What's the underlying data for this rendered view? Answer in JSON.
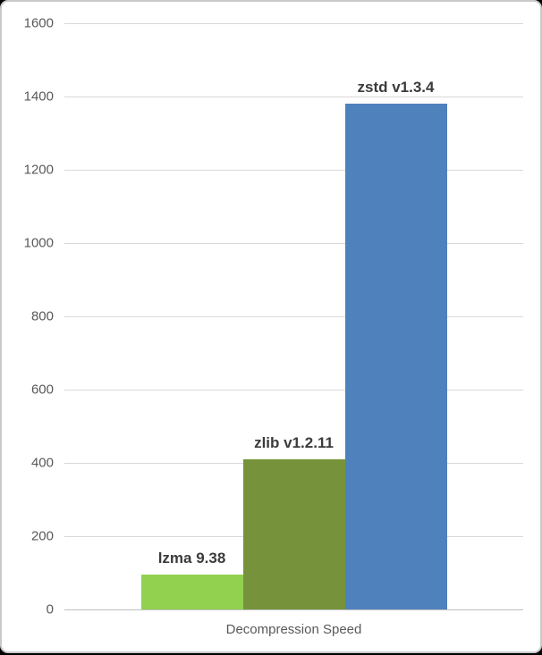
{
  "frame": {
    "background_color": "#000000",
    "panel_color": "#ffffff",
    "panel_border_color": "#c9c9c9"
  },
  "chart_data": {
    "type": "bar",
    "title": "",
    "xlabel": "Decompression Speed",
    "ylabel": "",
    "ylim": [
      0,
      1600
    ],
    "ytick_step": 200,
    "grid": true,
    "legend": "none",
    "data_labels": "series name above each bar",
    "categories": [
      "Decompression Speed"
    ],
    "series": [
      {
        "name": "lzma 9.38",
        "value": 95,
        "color": "#92D050"
      },
      {
        "name": "zlib v1.2.11",
        "value": 410,
        "color": "#76933C"
      },
      {
        "name": "zstd v1.3.4",
        "value": 1380,
        "color": "#4F81BD"
      }
    ],
    "gridline_color": "#d9d9d9",
    "axis_line_color": "#bfbfbf",
    "tick_label_color": "#595959",
    "data_label_color": "#3b3b3b"
  }
}
